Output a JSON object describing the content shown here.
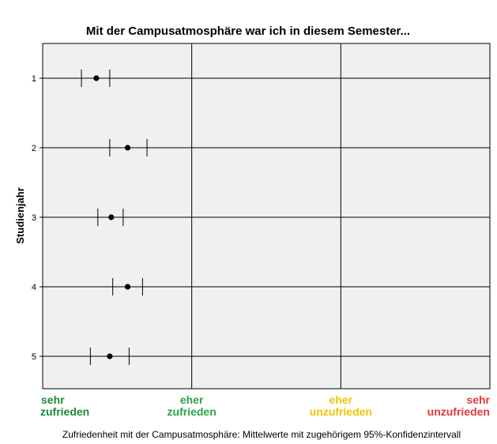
{
  "chart_data": {
    "type": "scatter",
    "title": "Mit der Campusatmosphäre war ich in diesem Semester...",
    "ylabel": "Studienjahr",
    "caption": "Zufriedenheit mit der Campusatmosphäre: Mittelwerte mit zugehörigem 95%-Konfidenzintervall",
    "xlim": [
      1,
      4
    ],
    "x_ticks": [
      1,
      2,
      3,
      4
    ],
    "x_categories": [
      {
        "line1": "sehr",
        "line2": "zufrieden",
        "color": "#1a8a3a"
      },
      {
        "line1": "eher",
        "line2": "zufrieden",
        "color": "#2aa54a"
      },
      {
        "line1": "eher",
        "line2": "unzufrieden",
        "color": "#f2c200"
      },
      {
        "line1": "sehr",
        "line2": "unzufrieden",
        "color": "#e03a3a"
      }
    ],
    "categories": [
      "1",
      "2",
      "3",
      "4",
      "5"
    ],
    "series": [
      {
        "means": [
          1.36,
          1.57,
          1.46,
          1.57,
          1.45
        ],
        "ci_lower": [
          1.26,
          1.45,
          1.37,
          1.47,
          1.32
        ],
        "ci_upper": [
          1.45,
          1.7,
          1.54,
          1.67,
          1.58
        ]
      }
    ],
    "grid": true,
    "plot_background": "#f0f0f0"
  }
}
